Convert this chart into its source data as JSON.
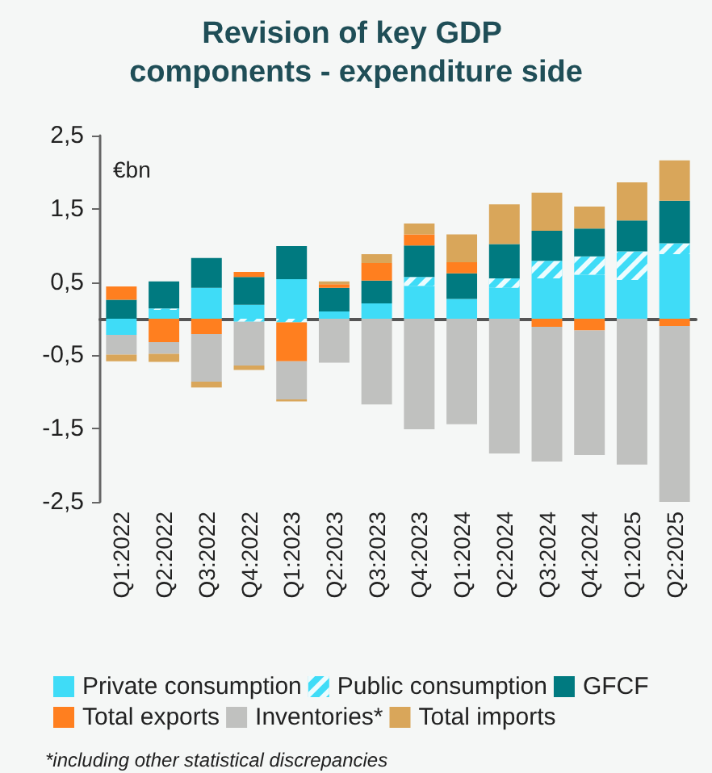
{
  "chart_data": {
    "type": "bar",
    "title": "Revision of key GDP components - expenditure side",
    "ylabel": "€bn",
    "categories": [
      "Q1:2022",
      "Q2:2022",
      "Q3:2022",
      "Q4:2022",
      "Q1:2023",
      "Q2:2023",
      "Q3:2023",
      "Q4:2023",
      "Q1:2024",
      "Q2:2024",
      "Q3:2024",
      "Q4:2024",
      "Q1:2025",
      "Q2:2025"
    ],
    "stacked": true,
    "series": [
      {
        "name": "Private consumption",
        "color": "#3fdcf7",
        "values": [
          -0.22,
          0.12,
          0.42,
          0.19,
          0.54,
          0.1,
          0.21,
          0.45,
          0.27,
          0.42,
          0.55,
          0.6,
          0.53,
          0.88
        ]
      },
      {
        "name": "Public consumption",
        "color": "#3fdcf7",
        "values": [
          null,
          0.02,
          null,
          -0.04,
          -0.05,
          null,
          null,
          0.12,
          null,
          0.13,
          0.24,
          0.25,
          0.39,
          0.15
        ]
      },
      {
        "name": "GFCF",
        "color": "#007a80",
        "values": [
          0.26,
          0.37,
          0.41,
          0.38,
          0.45,
          0.32,
          0.31,
          0.43,
          0.35,
          0.47,
          0.41,
          0.38,
          0.42,
          0.58
        ]
      },
      {
        "name": "Total exports",
        "color": "#ff7f1f",
        "values": [
          0.18,
          -0.32,
          -0.21,
          0.07,
          -0.53,
          0.05,
          0.24,
          0.15,
          0.15,
          null,
          -0.11,
          -0.16,
          null,
          -0.1
        ]
      },
      {
        "name": "Inventories*",
        "color": "#c0c1bf",
        "values": [
          -0.27,
          -0.16,
          -0.65,
          -0.6,
          -0.52,
          -0.6,
          -1.17,
          -1.51,
          -1.44,
          -1.84,
          -1.84,
          -1.7,
          -1.99,
          -2.44
        ]
      },
      {
        "name": "Total imports",
        "color": "#d9a65a",
        "values": [
          -0.09,
          -0.11,
          -0.08,
          -0.06,
          -0.03,
          0.04,
          0.12,
          0.15,
          0.38,
          0.54,
          0.52,
          0.3,
          0.52,
          0.55
        ]
      }
    ],
    "ylim": [
      -2.5,
      2.5
    ],
    "yticks": [
      {
        "value": -2.5,
        "label": "-2,5"
      },
      {
        "value": -1.5,
        "label": "-1,5"
      },
      {
        "value": -0.5,
        "label": "-0,5"
      },
      {
        "value": 0.5,
        "label": "0,5"
      },
      {
        "value": 1.5,
        "label": "1,5"
      },
      {
        "value": 2.5,
        "label": "2,5"
      }
    ],
    "grid": false,
    "legend": "bottom",
    "annotations": [
      "*including other statistical discrepancies"
    ]
  }
}
